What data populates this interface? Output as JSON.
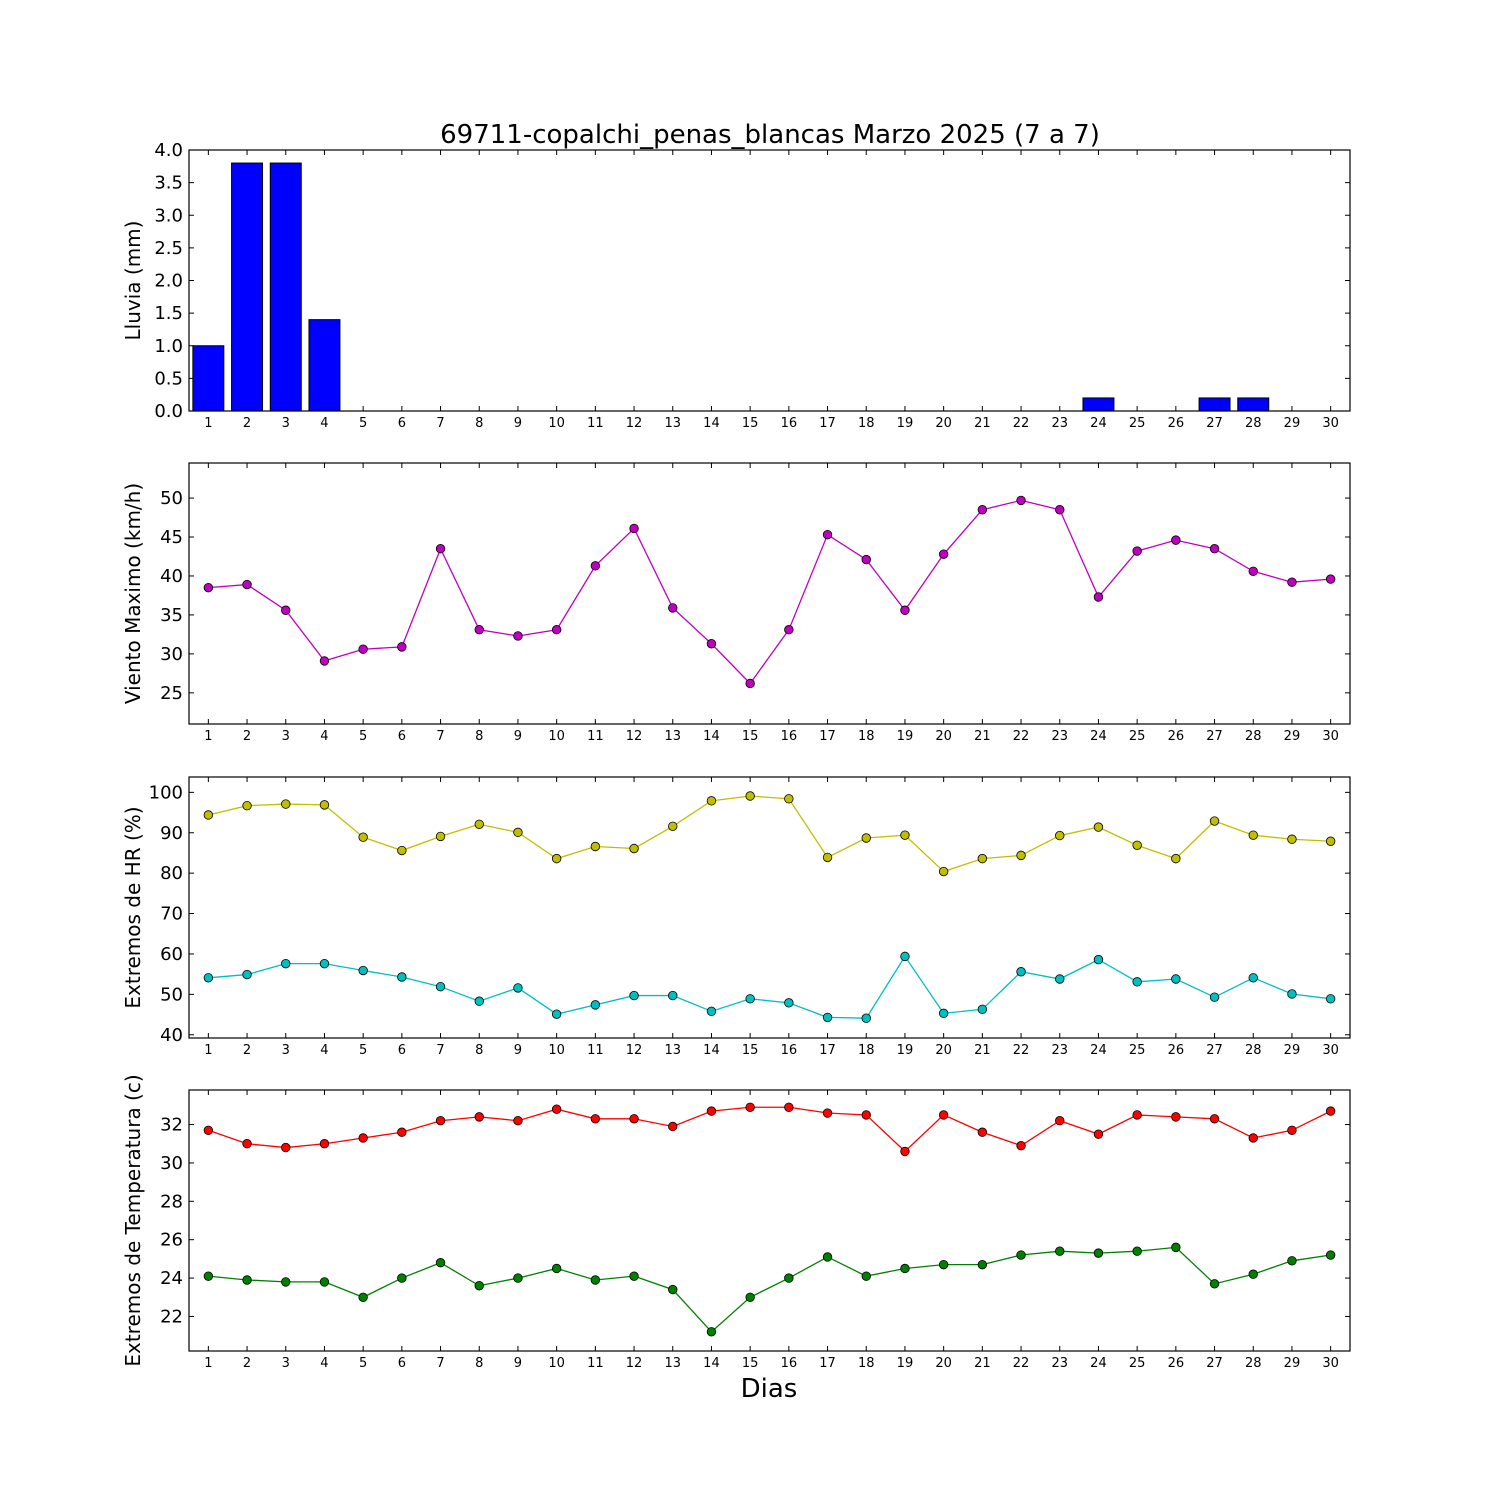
{
  "title": "69711-copalchi_penas_blancas Marzo 2025  (7 a 7)",
  "xlabel": "Dias",
  "chart_data": [
    {
      "type": "bar",
      "ylabel": "Lluvia (mm)",
      "xlim": [
        0.5,
        30.5
      ],
      "ylim": [
        0,
        4.0
      ],
      "yticks": [
        0.0,
        0.5,
        1.0,
        1.5,
        2.0,
        2.5,
        3.0,
        3.5,
        4.0
      ],
      "ytick_decimals": 1,
      "categories": [
        1,
        2,
        3,
        4,
        5,
        6,
        7,
        8,
        9,
        10,
        11,
        12,
        13,
        14,
        15,
        16,
        17,
        18,
        19,
        20,
        21,
        22,
        23,
        24,
        25,
        26,
        27,
        28,
        29,
        30
      ],
      "series": [
        {
          "color": "#0000ff",
          "values": [
            1.0,
            3.8,
            3.8,
            1.4,
            0,
            0,
            0,
            0,
            0,
            0,
            0,
            0,
            0,
            0,
            0,
            0,
            0,
            0,
            0,
            0,
            0,
            0,
            0,
            0.2,
            0,
            0,
            0.2,
            0.2,
            0,
            0
          ]
        }
      ]
    },
    {
      "type": "line",
      "ylabel": "Viento Maximo (km/h)",
      "xlim": [
        0.5,
        30.5
      ],
      "ylim": [
        21,
        54.5
      ],
      "yticks": [
        25,
        30,
        35,
        40,
        45,
        50
      ],
      "ytick_decimals": 0,
      "categories": [
        1,
        2,
        3,
        4,
        5,
        6,
        7,
        8,
        9,
        10,
        11,
        12,
        13,
        14,
        15,
        16,
        17,
        18,
        19,
        20,
        21,
        22,
        23,
        24,
        25,
        26,
        27,
        28,
        29,
        30
      ],
      "series": [
        {
          "color": "#bf00bf",
          "values": [
            38.5,
            38.9,
            35.6,
            29.1,
            30.6,
            30.9,
            43.5,
            33.1,
            32.3,
            33.1,
            41.3,
            46.1,
            35.9,
            31.3,
            26.2,
            33.1,
            45.3,
            42.1,
            35.6,
            42.8,
            48.5,
            49.7,
            48.5,
            37.3,
            43.2,
            44.6,
            43.5,
            40.6,
            39.2,
            39.6
          ]
        }
      ]
    },
    {
      "type": "line",
      "ylabel": "Extremos de HR (%)",
      "xlim": [
        0.5,
        30.5
      ],
      "ylim": [
        39.2,
        103.8
      ],
      "yticks": [
        40,
        50,
        60,
        70,
        80,
        90,
        100
      ],
      "ytick_decimals": 0,
      "categories": [
        1,
        2,
        3,
        4,
        5,
        6,
        7,
        8,
        9,
        10,
        11,
        12,
        13,
        14,
        15,
        16,
        17,
        18,
        19,
        20,
        21,
        22,
        23,
        24,
        25,
        26,
        27,
        28,
        29,
        30
      ],
      "series": [
        {
          "color": "#bfbf00",
          "values": [
            94.4,
            96.7,
            97.1,
            96.9,
            88.9,
            85.6,
            89.1,
            92.1,
            90.1,
            83.6,
            86.6,
            86.1,
            91.6,
            97.9,
            99.1,
            98.4,
            83.9,
            88.7,
            89.4,
            80.4,
            83.6,
            84.4,
            89.3,
            91.4,
            86.9,
            83.6,
            92.9,
            89.4,
            88.4,
            87.9
          ]
        },
        {
          "color": "#00bfbf",
          "values": [
            54.1,
            54.9,
            57.6,
            57.6,
            55.9,
            54.3,
            51.9,
            48.3,
            51.6,
            45.1,
            47.4,
            49.7,
            49.7,
            45.8,
            48.9,
            47.9,
            44.3,
            44.1,
            59.4,
            45.3,
            46.3,
            55.6,
            53.8,
            58.6,
            53.1,
            53.8,
            49.3,
            54.1,
            50.1,
            48.9
          ]
        }
      ]
    },
    {
      "type": "line",
      "ylabel": "Extremos de Temperatura (c)",
      "xlim": [
        0.5,
        30.5
      ],
      "ylim": [
        20.2,
        33.8
      ],
      "yticks": [
        22,
        24,
        26,
        28,
        30,
        32
      ],
      "ytick_decimals": 0,
      "categories": [
        1,
        2,
        3,
        4,
        5,
        6,
        7,
        8,
        9,
        10,
        11,
        12,
        13,
        14,
        15,
        16,
        17,
        18,
        19,
        20,
        21,
        22,
        23,
        24,
        25,
        26,
        27,
        28,
        29,
        30
      ],
      "series": [
        {
          "color": "#ff0000",
          "values": [
            31.7,
            31.0,
            30.8,
            31.0,
            31.3,
            31.6,
            32.2,
            32.4,
            32.2,
            32.8,
            32.3,
            32.3,
            31.9,
            32.7,
            32.9,
            32.9,
            32.6,
            32.5,
            30.6,
            32.5,
            31.6,
            30.9,
            32.2,
            31.5,
            32.5,
            32.4,
            32.3,
            31.3,
            31.7,
            32.7
          ]
        },
        {
          "color": "#008000",
          "values": [
            24.1,
            23.9,
            23.8,
            23.8,
            23.0,
            24.0,
            24.8,
            23.6,
            24.0,
            24.5,
            23.9,
            24.1,
            23.4,
            21.2,
            23.0,
            24.0,
            25.1,
            24.1,
            24.5,
            24.7,
            24.7,
            25.2,
            25.4,
            25.3,
            25.4,
            25.6,
            23.7,
            24.2,
            24.9,
            25.2
          ]
        }
      ]
    }
  ]
}
